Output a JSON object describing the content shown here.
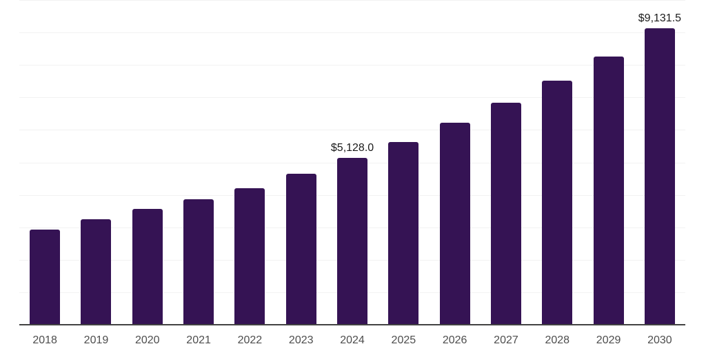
{
  "chart_data": {
    "type": "bar",
    "title": "",
    "xlabel": "",
    "ylabel": "",
    "categories": [
      "2018",
      "2019",
      "2020",
      "2021",
      "2022",
      "2023",
      "2024",
      "2025",
      "2026",
      "2027",
      "2028",
      "2029",
      "2030"
    ],
    "values": [
      2925,
      3240,
      3560,
      3855,
      4195,
      4640,
      5128,
      5635,
      6230,
      6845,
      7520,
      8265,
      9131.5
    ],
    "data_labels": [
      {
        "category": "2024",
        "text": "$5,128.0"
      },
      {
        "category": "2030",
        "text": "$9,131.5"
      }
    ],
    "ylim": [
      0,
      10000
    ],
    "gridline_step": 1000,
    "grid": "horizontal",
    "legend": "none",
    "y_tick_labels_shown": false,
    "colors": {
      "bar": "#351354",
      "gridline": "#f2f2f2",
      "axis_line": "#424242",
      "tick_label": "#4d4d4d",
      "data_label": "#1a1a1a",
      "background": "#ffffff"
    }
  }
}
